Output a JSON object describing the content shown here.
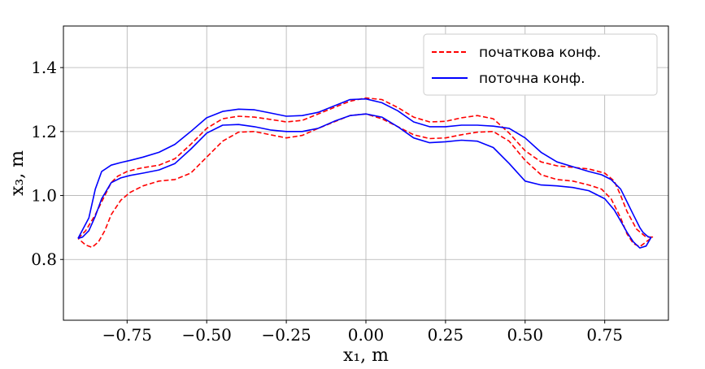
{
  "chart_data": {
    "type": "line",
    "xlabel": "x₁, m",
    "ylabel": "x₃, m",
    "xlim": [
      -0.95,
      0.95
    ],
    "ylim": [
      0.61,
      1.53
    ],
    "xticks": [
      -0.75,
      -0.5,
      -0.25,
      0.0,
      0.25,
      0.5,
      0.75
    ],
    "xtick_labels": [
      "−0.75",
      "−0.50",
      "−0.25",
      "0.00",
      "0.25",
      "0.50",
      "0.75"
    ],
    "yticks": [
      0.8,
      1.0,
      1.2,
      1.4
    ],
    "ytick_labels": [
      "0.8",
      "1.0",
      "1.2",
      "1.4"
    ],
    "grid": true,
    "legend_position": "top-right",
    "series": [
      {
        "name": "початкова конф.",
        "color": "#ff0000",
        "dash": "dashed",
        "x": [
          -0.904,
          -0.88,
          -0.85,
          -0.82,
          -0.8,
          -0.78,
          -0.75,
          -0.72,
          -0.7,
          -0.65,
          -0.6,
          -0.55,
          -0.5,
          -0.45,
          -0.4,
          -0.35,
          -0.3,
          -0.25,
          -0.2,
          -0.15,
          -0.1,
          -0.05,
          0.0,
          0.05,
          0.1,
          0.15,
          0.2,
          0.25,
          0.3,
          0.35,
          0.4,
          0.45,
          0.5,
          0.55,
          0.6,
          0.65,
          0.7,
          0.75,
          0.78,
          0.8,
          0.82,
          0.85,
          0.88,
          0.9,
          0.88,
          0.86,
          0.84,
          0.82,
          0.8,
          0.77,
          0.74,
          0.7,
          0.65,
          0.6,
          0.55,
          0.5,
          0.45,
          0.4,
          0.35,
          0.3,
          0.25,
          0.2,
          0.15,
          0.1,
          0.05,
          0.0,
          -0.05,
          -0.1,
          -0.15,
          -0.2,
          -0.25,
          -0.3,
          -0.35,
          -0.4,
          -0.45,
          -0.5,
          -0.55,
          -0.6,
          -0.65,
          -0.7,
          -0.74,
          -0.77,
          -0.8,
          -0.82,
          -0.84,
          -0.86,
          -0.88,
          -0.904
        ],
        "y": [
          0.866,
          0.89,
          0.94,
          1.0,
          1.04,
          1.06,
          1.075,
          1.083,
          1.087,
          1.095,
          1.115,
          1.16,
          1.21,
          1.24,
          1.248,
          1.245,
          1.238,
          1.23,
          1.235,
          1.255,
          1.275,
          1.295,
          1.305,
          1.3,
          1.275,
          1.245,
          1.23,
          1.232,
          1.243,
          1.25,
          1.24,
          1.195,
          1.14,
          1.105,
          1.093,
          1.088,
          1.083,
          1.07,
          1.045,
          1.0,
          0.95,
          0.895,
          0.87,
          0.87,
          0.855,
          0.84,
          0.85,
          0.88,
          0.93,
          0.99,
          1.02,
          1.033,
          1.045,
          1.05,
          1.065,
          1.11,
          1.17,
          1.2,
          1.198,
          1.19,
          1.18,
          1.178,
          1.19,
          1.215,
          1.24,
          1.255,
          1.25,
          1.23,
          1.21,
          1.188,
          1.18,
          1.19,
          1.2,
          1.198,
          1.17,
          1.12,
          1.07,
          1.05,
          1.045,
          1.03,
          1.01,
          0.985,
          0.94,
          0.89,
          0.855,
          0.838,
          0.845,
          0.866
        ]
      },
      {
        "name": "поточна конф.",
        "color": "#0000ff",
        "dash": "solid",
        "x": [
          -0.904,
          -0.89,
          -0.87,
          -0.85,
          -0.83,
          -0.8,
          -0.77,
          -0.74,
          -0.7,
          -0.65,
          -0.6,
          -0.55,
          -0.5,
          -0.45,
          -0.4,
          -0.35,
          -0.3,
          -0.25,
          -0.2,
          -0.15,
          -0.1,
          -0.05,
          0.0,
          0.05,
          0.1,
          0.15,
          0.2,
          0.25,
          0.3,
          0.35,
          0.4,
          0.45,
          0.5,
          0.55,
          0.6,
          0.65,
          0.7,
          0.75,
          0.78,
          0.8,
          0.82,
          0.84,
          0.86,
          0.88,
          0.895,
          0.885,
          0.87,
          0.86,
          0.84,
          0.82,
          0.8,
          0.77,
          0.74,
          0.7,
          0.65,
          0.6,
          0.55,
          0.5,
          0.45,
          0.4,
          0.35,
          0.3,
          0.25,
          0.2,
          0.15,
          0.1,
          0.05,
          0.0,
          -0.05,
          -0.1,
          -0.15,
          -0.2,
          -0.25,
          -0.3,
          -0.35,
          -0.4,
          -0.45,
          -0.5,
          -0.55,
          -0.6,
          -0.65,
          -0.7,
          -0.74,
          -0.77,
          -0.8,
          -0.83,
          -0.85,
          -0.87,
          -0.904
        ],
        "y": [
          0.866,
          0.87,
          0.89,
          0.935,
          0.99,
          1.04,
          1.055,
          1.063,
          1.07,
          1.08,
          1.1,
          1.145,
          1.195,
          1.22,
          1.222,
          1.215,
          1.205,
          1.2,
          1.2,
          1.21,
          1.232,
          1.25,
          1.255,
          1.245,
          1.215,
          1.18,
          1.165,
          1.168,
          1.173,
          1.17,
          1.15,
          1.1,
          1.045,
          1.033,
          1.03,
          1.025,
          1.015,
          0.99,
          0.955,
          0.92,
          0.885,
          0.855,
          0.836,
          0.842,
          0.868,
          0.872,
          0.885,
          0.9,
          0.94,
          0.98,
          1.02,
          1.05,
          1.065,
          1.075,
          1.09,
          1.105,
          1.135,
          1.18,
          1.21,
          1.217,
          1.22,
          1.22,
          1.215,
          1.215,
          1.23,
          1.265,
          1.29,
          1.302,
          1.3,
          1.28,
          1.26,
          1.25,
          1.248,
          1.258,
          1.268,
          1.27,
          1.263,
          1.243,
          1.2,
          1.16,
          1.135,
          1.12,
          1.11,
          1.103,
          1.095,
          1.075,
          1.02,
          0.93,
          0.866
        ]
      }
    ]
  }
}
